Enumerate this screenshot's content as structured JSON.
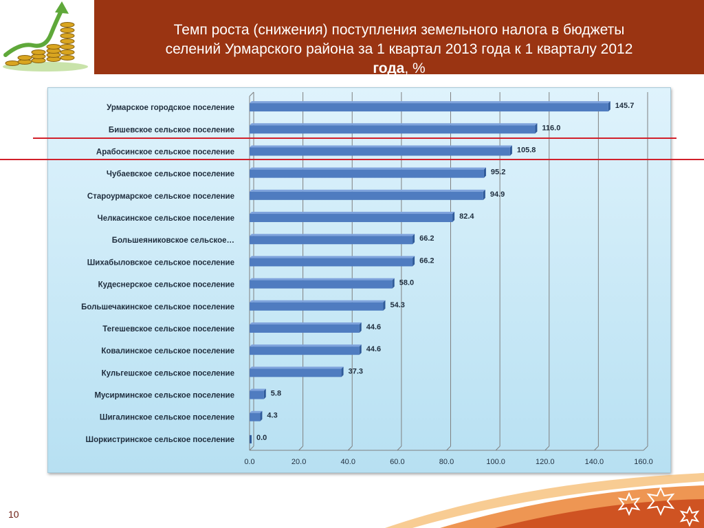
{
  "slide": {
    "title_line1": "Темп роста (снижения) поступления земельного налога в бюджеты",
    "title_line2": "селений Урмарского района за  1 квартал 2013 года к 1 кварталу 2012",
    "title_line3_bold": "года",
    "title_line3_rest": ", %",
    "page_number": "10"
  },
  "colors": {
    "title_bar": "#9a3412",
    "bar_fill": "#4f7cc0",
    "bar_top": "#7fa3dc",
    "bar_side": "#2f5a99",
    "panel_bg": "#cdebf7",
    "guide_line": "#d11f2a"
  },
  "icons": [
    "growth-arrow-coins-icon",
    "decorative-star-icon"
  ],
  "chart_data": {
    "type": "bar",
    "orientation": "horizontal",
    "categories": [
      "Урмарское  городское поселение",
      "Бишевское  сельское поселение",
      "Арабосинское сельское поселение",
      "Чубаевское  сельское поселение",
      "Староурмарское  сельское поселение",
      "Челкасинское  сельское поселение",
      "Большеяниковское  сельское…",
      "Шихабыловское  сельское поселение",
      "Кудеснерское  сельское поселение",
      "Большечакинское  сельское поселение",
      "Тегешевское  сельское поселение",
      "Ковалинское  сельское поселение",
      "Кульгешское  сельское поселение",
      "Мусирминское  сельское поселение",
      "Шигалинское  сельское поселение",
      "Шоркистринское  сельское поселение"
    ],
    "values": [
      145.7,
      116.0,
      105.8,
      95.2,
      94.9,
      82.4,
      66.2,
      66.2,
      58.0,
      54.3,
      44.6,
      44.6,
      37.3,
      5.8,
      4.3,
      0.0
    ],
    "value_labels": [
      "145.7",
      "116.0",
      "105.8",
      "95.2",
      "94.9",
      "82.4",
      "66.2",
      "66.2",
      "58.0",
      "54.3",
      "44.6",
      "44.6",
      "37.3",
      "5.8",
      "4.3",
      "0.0"
    ],
    "xlim": [
      0,
      160
    ],
    "x_ticks": [
      "0.0",
      "20.0",
      "40.0",
      "60.0",
      "80.0",
      "100.0",
      "120.0",
      "140.0",
      "160.0"
    ],
    "grid": true,
    "style": "3d"
  }
}
